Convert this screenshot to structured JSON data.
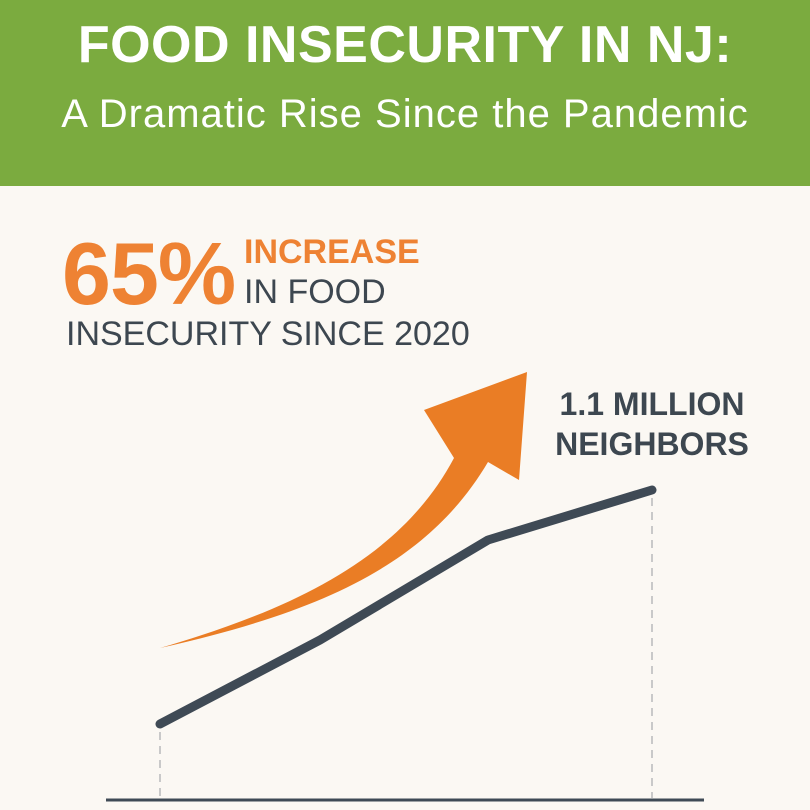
{
  "header": {
    "title": "FOOD INSECURITY IN NJ:",
    "subtitle": "A Dramatic Rise Since the Pandemic"
  },
  "stat": {
    "percent": "65%",
    "line1": "INCREASE",
    "line2": "IN FOOD",
    "line3": "INSECURITY SINCE 2020"
  },
  "chart_data": {
    "type": "line",
    "x": [
      0,
      1,
      2,
      3
    ],
    "values": [
      null,
      null,
      null,
      1.1
    ],
    "end_label_lines": [
      "1.1 MILLION",
      "NEIGHBORS"
    ],
    "grid": false,
    "trend_arrow": true
  },
  "colors": {
    "banner": "#7bab3f",
    "accent": "#ee8233",
    "text_dark": "#3d4750",
    "line": "#3f4a55",
    "background": "#fbf8f3"
  }
}
